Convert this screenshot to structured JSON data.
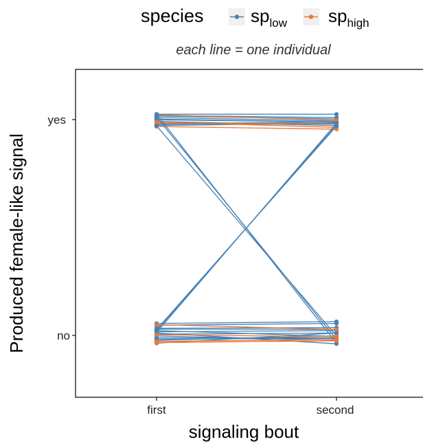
{
  "chart_data": {
    "type": "line",
    "subtitle": "each line = one individual",
    "xlabel": "signaling bout",
    "ylabel": "Produced female-like signal",
    "categories": [
      "first",
      "second"
    ],
    "y_categories": [
      "no",
      "yes"
    ],
    "legend": {
      "title": "species",
      "position": "top",
      "items": [
        {
          "base": "sp",
          "sub": "low",
          "color": "#4682b4"
        },
        {
          "base": "sp",
          "sub": "high",
          "color": "#ee7733"
        }
      ]
    },
    "grid": false,
    "series": [
      {
        "species": "low",
        "first": "yes",
        "second": "yes",
        "j1": 0.045,
        "j2": 0.045
      },
      {
        "species": "low",
        "first": "yes",
        "second": "yes",
        "j1": 0.035,
        "j2": 0.017
      },
      {
        "species": "low",
        "first": "yes",
        "second": "yes",
        "j1": 0.03,
        "j2": 0.005
      },
      {
        "species": "low",
        "first": "yes",
        "second": "yes",
        "j1": 0.018,
        "j2": -0.012
      },
      {
        "species": "low",
        "first": "yes",
        "second": "yes",
        "j1": 0.005,
        "j2": -0.022
      },
      {
        "species": "low",
        "first": "yes",
        "second": "yes",
        "j1": -0.002,
        "j2": -0.02
      },
      {
        "species": "low",
        "first": "yes",
        "second": "yes",
        "j1": -0.015,
        "j2": -0.05
      },
      {
        "species": "low",
        "first": "yes",
        "second": "yes",
        "j1": -0.035,
        "j2": -0.02
      },
      {
        "species": "low",
        "first": "yes",
        "second": "yes",
        "j1": -0.04,
        "j2": -0.03
      },
      {
        "species": "low",
        "first": "yes",
        "second": "yes",
        "j1": -0.05,
        "j2": -0.03
      },
      {
        "species": "high",
        "first": "yes",
        "second": "yes",
        "j1": 0.04,
        "j2": -0.005
      },
      {
        "species": "high",
        "first": "yes",
        "second": "yes",
        "j1": -0.03,
        "j2": -0.038
      },
      {
        "species": "high",
        "first": "yes",
        "second": "yes",
        "j1": -0.02,
        "j2": -0.065
      },
      {
        "species": "high",
        "first": "yes",
        "second": "yes",
        "j1": -0.058,
        "j2": -0.08
      },
      {
        "species": "low",
        "first": "yes",
        "second": "no",
        "j1": 0.045,
        "j2": -0.065
      },
      {
        "species": "low",
        "first": "yes",
        "second": "no",
        "j1": 0.022,
        "j2": -0.035
      },
      {
        "species": "low",
        "first": "yes",
        "second": "no",
        "j1": -0.052,
        "j2": -0.005
      },
      {
        "species": "low",
        "first": "no",
        "second": "yes",
        "j1": 0.025,
        "j2": -0.03
      },
      {
        "species": "low",
        "first": "no",
        "second": "yes",
        "j1": 0.04,
        "j2": -0.045
      },
      {
        "species": "low",
        "first": "no",
        "second": "yes",
        "j1": 0.05,
        "j2": -0.055
      },
      {
        "species": "low",
        "first": "no",
        "second": "no",
        "j1": 0.1,
        "j2": 0.115
      },
      {
        "species": "low",
        "first": "no",
        "second": "no",
        "j1": 0.085,
        "j2": 0.1
      },
      {
        "species": "low",
        "first": "no",
        "second": "no",
        "j1": 0.06,
        "j2": 0.065
      },
      {
        "species": "low",
        "first": "no",
        "second": "no",
        "j1": 0.052,
        "j2": 0.05
      },
      {
        "species": "low",
        "first": "no",
        "second": "no",
        "j1": 0.04,
        "j2": -0.008
      },
      {
        "species": "low",
        "first": "no",
        "second": "no",
        "j1": 0.03,
        "j2": 0.04
      },
      {
        "species": "low",
        "first": "no",
        "second": "no",
        "j1": 0.01,
        "j2": 0.02
      },
      {
        "species": "low",
        "first": "no",
        "second": "no",
        "j1": -0.005,
        "j2": -0.04
      },
      {
        "species": "low",
        "first": "no",
        "second": "no",
        "j1": -0.02,
        "j2": -0.02
      },
      {
        "species": "low",
        "first": "no",
        "second": "no",
        "j1": -0.03,
        "j2": -0.025
      },
      {
        "species": "low",
        "first": "no",
        "second": "no",
        "j1": -0.04,
        "j2": -0.005
      },
      {
        "species": "low",
        "first": "no",
        "second": "no",
        "j1": -0.065,
        "j2": 0.02
      },
      {
        "species": "low",
        "first": "no",
        "second": "no",
        "j1": 0.02,
        "j2": -0.07
      },
      {
        "species": "high",
        "first": "no",
        "second": "no",
        "j1": 0.09,
        "j2": 0.05
      },
      {
        "species": "high",
        "first": "no",
        "second": "no",
        "j1": 0.005,
        "j2": -0.01
      },
      {
        "species": "high",
        "first": "no",
        "second": "no",
        "j1": -0.05,
        "j2": -0.035
      },
      {
        "species": "high",
        "first": "no",
        "second": "no",
        "j1": -0.06,
        "j2": -0.045
      }
    ]
  }
}
